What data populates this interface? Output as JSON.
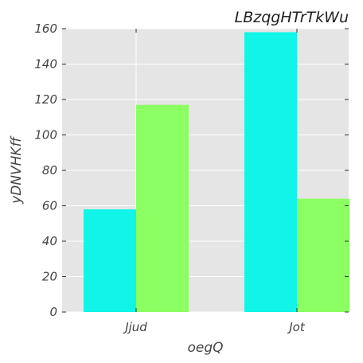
{
  "chart_data": {
    "type": "bar",
    "title": "LBzqgHTrTkWu",
    "xlabel": "oegQ",
    "ylabel": "yDNVHKff",
    "categories": [
      "Jjud",
      "Jot"
    ],
    "series": [
      {
        "values": [
          58,
          158
        ],
        "color": "#10f5e8"
      },
      {
        "values": [
          117,
          64
        ],
        "color": "#8cff62"
      }
    ],
    "ylim": [
      0,
      160
    ],
    "yticks": [
      0,
      20,
      40,
      60,
      80,
      100,
      120,
      140,
      160
    ],
    "grid": true,
    "plot_background": "#e5e5e5",
    "grid_color": "#ffffff"
  }
}
